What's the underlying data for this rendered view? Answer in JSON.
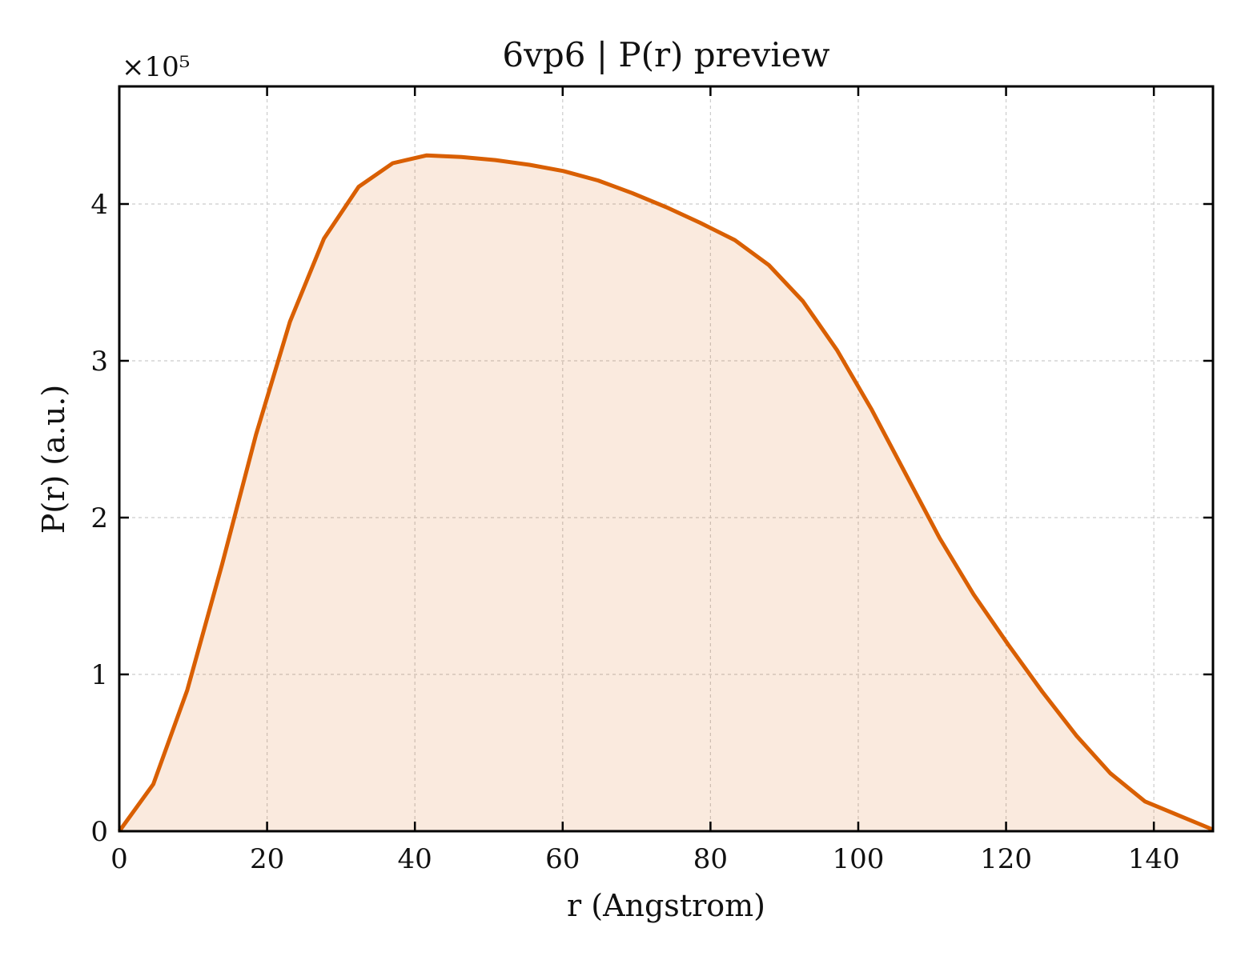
{
  "chart_data": {
    "type": "area",
    "title": "6vp6 | P(r) preview",
    "xlabel": "r (Angstrom)",
    "ylabel": "P(r) (a.u.)",
    "y_multiplier_label": "×10⁵",
    "xlim": [
      0,
      148
    ],
    "ylim": [
      0,
      4.75
    ],
    "x_ticks": [
      0,
      20,
      40,
      60,
      80,
      100,
      120,
      140
    ],
    "y_ticks": [
      0,
      1,
      2,
      3,
      4
    ],
    "x_tick_labels": [
      "0",
      "20",
      "40",
      "60",
      "80",
      "100",
      "120",
      "140"
    ],
    "y_tick_labels": [
      "0",
      "1",
      "2",
      "3",
      "4"
    ],
    "grid": true,
    "series": [
      {
        "color": "#d95f02",
        "fill_color": "#d95f02",
        "fill_opacity": 0.13,
        "x": [
          0,
          4.6,
          9.2,
          13.9,
          18.5,
          23.1,
          27.7,
          32.4,
          37.0,
          41.6,
          46.3,
          50.9,
          55.5,
          60.1,
          64.8,
          69.4,
          74.0,
          78.6,
          83.3,
          87.9,
          92.5,
          97.1,
          101.8,
          106.4,
          111.0,
          115.6,
          120.3,
          124.9,
          129.5,
          134.1,
          138.8,
          143.4,
          148.0
        ],
        "y": [
          0.0,
          0.3,
          0.9,
          1.7,
          2.53,
          3.25,
          3.78,
          4.11,
          4.26,
          4.31,
          4.3,
          4.28,
          4.25,
          4.21,
          4.15,
          4.07,
          3.98,
          3.88,
          3.77,
          3.61,
          3.38,
          3.07,
          2.69,
          2.28,
          1.87,
          1.51,
          1.19,
          0.89,
          0.61,
          0.37,
          0.19,
          0.1,
          0.01
        ]
      }
    ]
  }
}
